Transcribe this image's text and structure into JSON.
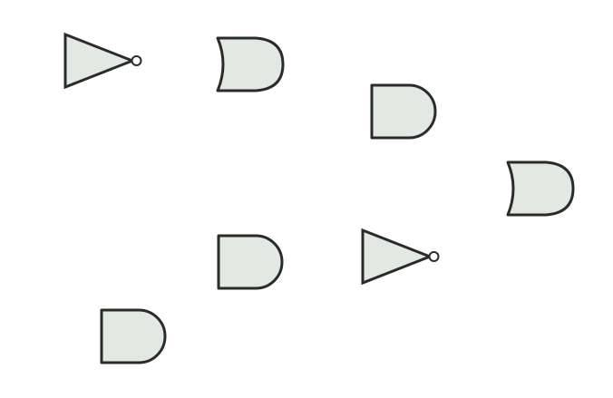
{
  "diagram": {
    "title": "",
    "style": {
      "background": "#ffffff",
      "gate_fill": "#e2e8e2",
      "gate_stroke": "#2b2b2b"
    },
    "gates": [
      {
        "id": "g1",
        "type": "NOT",
        "label": ""
      },
      {
        "id": "g2",
        "type": "OR",
        "label": ""
      },
      {
        "id": "g3",
        "type": "AND",
        "label": ""
      },
      {
        "id": "g4",
        "type": "OR",
        "label": ""
      },
      {
        "id": "g5",
        "type": "AND",
        "label": ""
      },
      {
        "id": "g6",
        "type": "NOT",
        "label": ""
      },
      {
        "id": "g7",
        "type": "AND",
        "label": ""
      }
    ],
    "connections": []
  }
}
